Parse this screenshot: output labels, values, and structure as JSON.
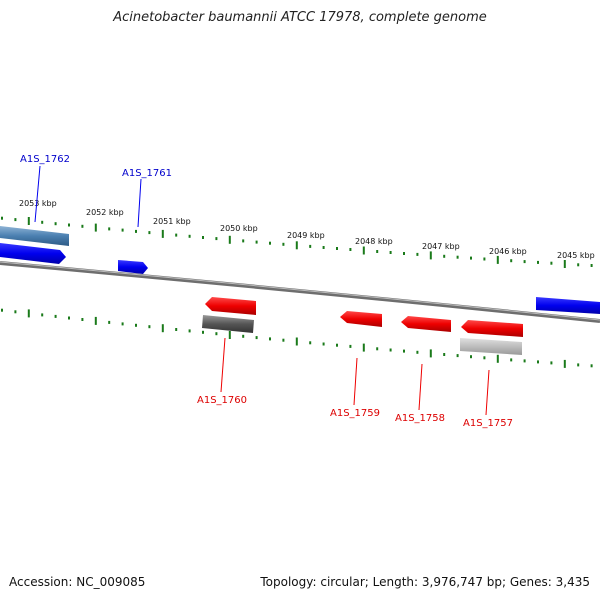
{
  "title": "Acinetobacter baumannii ATCC 17978, complete genome",
  "footer": {
    "accession": "Accession: NC_009085",
    "topology": "Topology: circular; Length: 3,976,747 bp; Genes: 3,435"
  },
  "ruler": {
    "labels": [
      "2053 kbp",
      "2052 kbp",
      "2051 kbp",
      "2050 kbp",
      "2049 kbp",
      "2048 kbp",
      "2047 kbp",
      "2046 kbp",
      "2045 kbp"
    ]
  },
  "genes": {
    "A1S_1762": "A1S_1762",
    "A1S_1761": "A1S_1761",
    "A1S_1760": "A1S_1760",
    "A1S_1759": "A1S_1759",
    "A1S_1758": "A1S_1758",
    "A1S_1757": "A1S_1757"
  },
  "colors": {
    "forward": "#0000ee",
    "reverse": "#ee0000",
    "tick": "#1a7a1a",
    "backbone": "#888888"
  }
}
